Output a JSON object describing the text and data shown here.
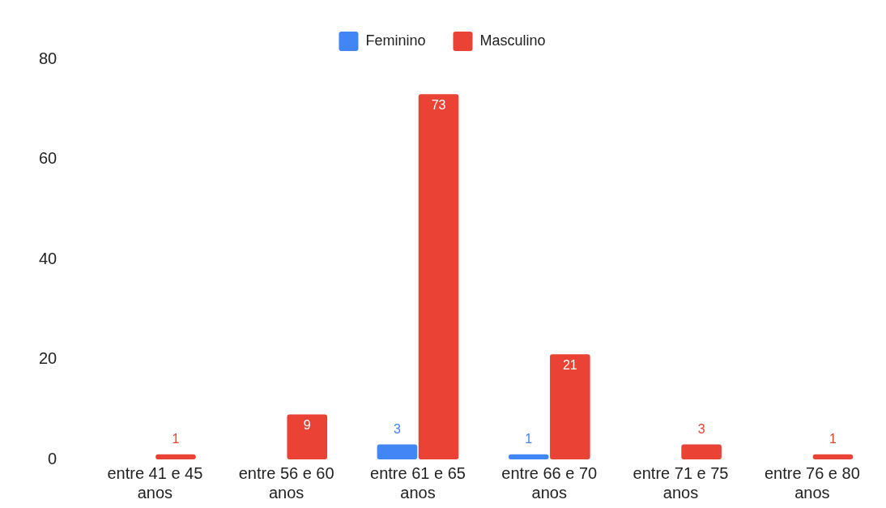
{
  "chart_data": {
    "type": "bar",
    "categories": [
      "entre 41 e 45 anos",
      "entre 56 e 60 anos",
      "entre 61 e 65 anos",
      "entre 66 e 70 anos",
      "entre 71 e 75 anos",
      "entre 76 e 80 anos"
    ],
    "series": [
      {
        "name": "Feminino",
        "color": "#4285f4",
        "values": [
          null,
          null,
          3,
          1,
          null,
          null
        ]
      },
      {
        "name": "Masculino",
        "color": "#ea4335",
        "values": [
          1,
          9,
          73,
          21,
          3,
          1
        ]
      }
    ],
    "ylim": [
      0,
      80
    ],
    "yticks": [
      0,
      20,
      40,
      60,
      80
    ],
    "grid": false,
    "legend": "top",
    "data_labels": true
  }
}
